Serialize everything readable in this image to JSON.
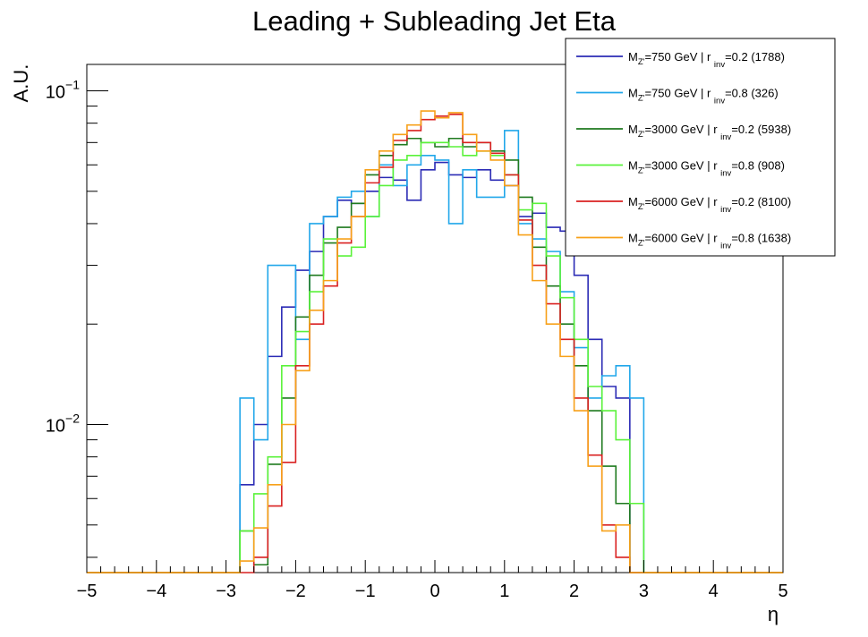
{
  "chart_data": {
    "type": "line",
    "title": "Leading + Subleading Jet Eta",
    "xlabel": "η",
    "ylabel": "A.U.",
    "y_scale": "log",
    "xlim": [
      -5,
      5
    ],
    "ylim": [
      0.0036,
      0.12
    ],
    "x_ticks": [
      "−5",
      "−4",
      "−3",
      "−2",
      "−1",
      "0",
      "1",
      "2",
      "3",
      "4",
      "5"
    ],
    "y_ticks": [
      {
        "value": 0.1,
        "base": "10",
        "exp": "−1"
      },
      {
        "value": 0.01,
        "base": "10",
        "exp": "−2"
      }
    ],
    "bin_edges": [
      -5.0,
      -4.8,
      -4.6,
      -4.4,
      -4.2,
      -4.0,
      -3.8,
      -3.6,
      -3.4,
      -3.2,
      -3.0,
      -2.8,
      -2.6,
      -2.4,
      -2.2,
      -2.0,
      -1.8,
      -1.6,
      -1.4,
      -1.2,
      -1.0,
      -0.8,
      -0.6,
      -0.4,
      -0.2,
      0.0,
      0.2,
      0.4,
      0.6,
      0.8,
      1.0,
      1.2,
      1.4,
      1.6,
      1.8,
      2.0,
      2.2,
      2.4,
      2.6,
      2.8,
      3.0,
      3.2,
      3.4,
      3.6,
      3.8,
      4.0,
      4.2,
      4.4,
      4.6,
      4.8,
      5.0
    ],
    "legend_position": "top-right",
    "series": [
      {
        "name": "750 GeV | r inv=0.2 (1788)",
        "label_parts": [
          "M",
          "Z'",
          "=750 GeV | r ",
          "inv",
          "=0.2 (1788)"
        ],
        "color": "#2b2bb5",
        "values": [
          0,
          0,
          0,
          0,
          0,
          0,
          0,
          0,
          0,
          0,
          0,
          0.0066,
          0.01,
          0.016,
          0.0225,
          0.029,
          0.033,
          0.042,
          0.047,
          0.046,
          0.05,
          0.055,
          0.054,
          0.047,
          0.058,
          0.061,
          0.056,
          0.055,
          0.058,
          0.054,
          0.052,
          0.042,
          0.043,
          0.039,
          0.038,
          0.028,
          0.018,
          0.013,
          0.012,
          0,
          0,
          0,
          0,
          0,
          0,
          0,
          0,
          0,
          0,
          0
        ]
      },
      {
        "name": "750 GeV | r inv=0.8 (326)",
        "label_parts": [
          "M",
          "Z'",
          "=750 GeV | r ",
          "inv",
          "=0.8 (326)"
        ],
        "color": "#21a7ea",
        "values": [
          0,
          0,
          0,
          0,
          0,
          0,
          0,
          0,
          0,
          0,
          0,
          0.012,
          0.009,
          0.03,
          0.03,
          0.018,
          0.04,
          0.042,
          0.048,
          0.05,
          0.042,
          0.06,
          0.052,
          0.06,
          0.064,
          0.062,
          0.04,
          0.058,
          0.048,
          0.048,
          0.076,
          0.04,
          0.036,
          0.033,
          0.025,
          0.017,
          0.012,
          0.014,
          0.015,
          0.012,
          0,
          0,
          0,
          0,
          0,
          0,
          0,
          0,
          0,
          0
        ]
      },
      {
        "name": "3000 GeV | r inv=0.2 (5938)",
        "label_parts": [
          "M",
          "Z'",
          "=3000 GeV | r ",
          "inv",
          "=0.2 (5938)"
        ],
        "color": "#1f7a1f",
        "values": [
          0,
          0,
          0,
          0,
          0,
          0,
          0,
          0,
          0,
          0,
          0,
          0.0048,
          0.0038,
          0.0076,
          0.012,
          0.021,
          0.028,
          0.035,
          0.039,
          0.046,
          0.056,
          0.064,
          0.069,
          0.072,
          0.07,
          0.068,
          0.072,
          0.068,
          0.07,
          0.066,
          0.062,
          0.048,
          0.034,
          0.026,
          0.02,
          0.015,
          0.011,
          0.0075,
          0.0058,
          0,
          0,
          0,
          0,
          0,
          0,
          0,
          0,
          0,
          0,
          0
        ]
      },
      {
        "name": "3000 GeV | r inv=0.8 (908)",
        "label_parts": [
          "M",
          "Z'",
          "=3000 GeV | r ",
          "inv",
          "=0.8 (908)"
        ],
        "color": "#5af23a",
        "values": [
          0,
          0,
          0,
          0,
          0,
          0,
          0,
          0,
          0,
          0,
          0,
          0.0048,
          0.0062,
          0.008,
          0.015,
          0.019,
          0.025,
          0.036,
          0.032,
          0.034,
          0.042,
          0.052,
          0.062,
          0.064,
          0.07,
          0.07,
          0.068,
          0.064,
          0.066,
          0.064,
          0.056,
          0.044,
          0.046,
          0.032,
          0.024,
          0.018,
          0.013,
          0.011,
          0.009,
          0.0058,
          0,
          0,
          0,
          0,
          0,
          0,
          0,
          0,
          0,
          0
        ]
      },
      {
        "name": "6000 GeV | r inv=0.2 (8100)",
        "label_parts": [
          "M",
          "Z'",
          "=6000 GeV | r ",
          "inv",
          "=0.2 (8100)"
        ],
        "color": "#d92121",
        "values": [
          0,
          0,
          0,
          0,
          0,
          0,
          0,
          0,
          0,
          0,
          0,
          0.0036,
          0.004,
          0.0057,
          0.0077,
          0.015,
          0.02,
          0.026,
          0.035,
          0.042,
          0.053,
          0.059,
          0.071,
          0.076,
          0.082,
          0.084,
          0.085,
          0.07,
          0.07,
          0.065,
          0.056,
          0.041,
          0.03,
          0.023,
          0.018,
          0.012,
          0.0081,
          0.005,
          0.004,
          0,
          0,
          0,
          0,
          0,
          0,
          0,
          0,
          0,
          0,
          0
        ]
      },
      {
        "name": "6000 GeV | r inv=0.8 (1638)",
        "label_parts": [
          "M",
          "Z'",
          "=6000 GeV | r ",
          "inv",
          "=0.8 (1638)"
        ],
        "color": "#f7a11a",
        "values": [
          0,
          0,
          0,
          0,
          0,
          0,
          0,
          0,
          0,
          0,
          0,
          0.0039,
          0.0049,
          0.0066,
          0.01,
          0.0145,
          0.022,
          0.027,
          0.036,
          0.042,
          0.058,
          0.066,
          0.074,
          0.079,
          0.087,
          0.083,
          0.086,
          0.074,
          0.066,
          0.062,
          0.052,
          0.037,
          0.027,
          0.02,
          0.016,
          0.011,
          0.0075,
          0.0048,
          0.005,
          0,
          0,
          0,
          0,
          0,
          0,
          0,
          0,
          0,
          0,
          0
        ]
      }
    ]
  }
}
